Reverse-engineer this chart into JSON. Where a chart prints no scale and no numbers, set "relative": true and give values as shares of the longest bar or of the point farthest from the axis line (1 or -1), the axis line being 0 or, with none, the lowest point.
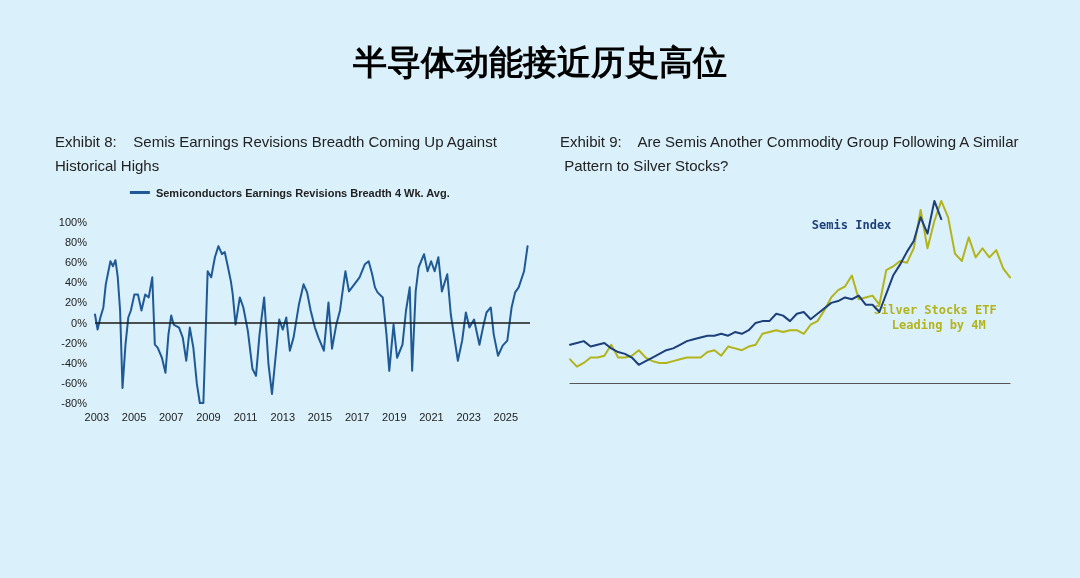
{
  "chart_data": [
    {
      "type": "line",
      "title": "半导体动能接近历史高位",
      "subtitle": "Exhibit 8:    Semis Earnings Revisions Breadth Coming Up Against Historical Highs",
      "legend": "top",
      "xlim": [
        2002.9,
        2026.3
      ],
      "xticks": [
        2003,
        2005,
        2007,
        2009,
        2011,
        2013,
        2015,
        2017,
        2019,
        2021,
        2023,
        2025
      ],
      "ylim": [
        -80,
        100
      ],
      "yticks": [
        {
          "value": -80,
          "label": "-80%"
        },
        {
          "value": -60,
          "label": "-60%"
        },
        {
          "value": -40,
          "label": "-40%"
        },
        {
          "value": -20,
          "label": "-20%"
        },
        {
          "value": 0,
          "label": "0%"
        },
        {
          "value": 20,
          "label": "20%"
        },
        {
          "value": 40,
          "label": "40%"
        },
        {
          "value": 60,
          "label": "60%"
        },
        {
          "value": 80,
          "label": "80%"
        },
        {
          "value": 100,
          "label": "100%"
        }
      ],
      "marker": "none",
      "line_style": "solid",
      "ref_lines": [
        {
          "axis": "y",
          "value": 0,
          "color": "#1a1a1a"
        }
      ],
      "series": [
        {
          "name": "Semiconductors Earnings Revisions Breadth 4 Wk. Avg.",
          "color": "#1f5a96",
          "x": [
            2002.9,
            2003.04,
            2003.19,
            2003.35,
            2003.48,
            2003.62,
            2003.73,
            2003.87,
            2004.0,
            2004.12,
            2004.25,
            2004.38,
            2004.54,
            2004.69,
            2004.83,
            2005.02,
            2005.21,
            2005.4,
            2005.6,
            2005.79,
            2005.98,
            2006.12,
            2006.27,
            2006.5,
            2006.69,
            2006.85,
            2007.0,
            2007.13,
            2007.42,
            2007.62,
            2007.81,
            2008.0,
            2008.19,
            2008.38,
            2008.54,
            2008.73,
            2008.88,
            2008.96,
            2009.15,
            2009.35,
            2009.54,
            2009.73,
            2009.88,
            2010.02,
            2010.21,
            2010.31,
            2010.46,
            2010.69,
            2010.88,
            2011.12,
            2011.37,
            2011.56,
            2011.75,
            2012.0,
            2012.23,
            2012.42,
            2012.62,
            2012.81,
            2013.0,
            2013.19,
            2013.38,
            2013.58,
            2013.87,
            2014.12,
            2014.31,
            2014.5,
            2014.73,
            2014.92,
            2015.21,
            2015.46,
            2015.65,
            2015.88,
            2016.08,
            2016.27,
            2016.37,
            2016.56,
            2016.85,
            2017.13,
            2017.42,
            2017.62,
            2017.81,
            2017.96,
            2018.1,
            2018.38,
            2018.58,
            2018.73,
            2018.96,
            2019.15,
            2019.44,
            2019.63,
            2019.83,
            2019.96,
            2020.15,
            2020.31,
            2020.6,
            2020.79,
            2020.98,
            2021.17,
            2021.37,
            2021.56,
            2021.85,
            2022.04,
            2022.23,
            2022.42,
            2022.65,
            2022.85,
            2023.04,
            2023.29,
            2023.58,
            2023.77,
            2023.96,
            2024.19,
            2024.35,
            2024.58,
            2024.83,
            2025.08,
            2025.31,
            2025.5,
            2025.69,
            2025.98,
            2026.17
          ],
          "values": [
            8,
            -7,
            5,
            15,
            38,
            51,
            61,
            56,
            62,
            46,
            12,
            -65,
            -22,
            5,
            12,
            28,
            28,
            12,
            28,
            25,
            45,
            -22,
            -25,
            -35,
            -50,
            -12,
            7,
            -2,
            -5,
            -15,
            -38,
            -5,
            -25,
            -61,
            -80,
            -80,
            5,
            51,
            45,
            65,
            76,
            68,
            70,
            58,
            41,
            28,
            -2,
            25,
            15,
            -8,
            -46,
            -53,
            -12,
            25,
            -41,
            -71,
            -33,
            3,
            -7,
            5,
            -28,
            -15,
            18,
            38,
            30,
            12,
            -5,
            -15,
            -28,
            20,
            -26,
            -2,
            12,
            38,
            51,
            31,
            38,
            45,
            58,
            61,
            48,
            35,
            30,
            25,
            -12,
            -48,
            -2,
            -35,
            -22,
            12,
            35,
            -48,
            31,
            55,
            68,
            51,
            61,
            51,
            65,
            31,
            48,
            8,
            -15,
            -38,
            -18,
            10,
            -5,
            3,
            -22,
            -5,
            10,
            15,
            -12,
            -33,
            -23,
            -18,
            15,
            30,
            35,
            51,
            76
          ]
        }
      ]
    },
    {
      "type": "line",
      "title": "Exhibit 9:    Are Semis Another Commodity Group Following A Similar Pattern to Silver Stocks?",
      "relative": true,
      "legend": false,
      "marker": "none",
      "line_style": "solid",
      "categories": [
        null,
        null,
        null,
        null,
        null,
        null,
        null,
        null,
        null,
        null,
        null,
        null,
        null,
        null,
        null,
        null,
        null,
        null,
        null,
        null,
        null,
        null,
        null,
        null,
        null,
        null,
        null,
        null,
        null,
        null,
        null,
        null,
        null,
        null,
        null,
        null,
        null,
        null,
        null,
        null,
        null,
        null,
        null,
        null,
        null,
        null,
        null,
        null,
        null,
        null,
        null,
        null,
        null,
        null,
        null,
        null,
        null,
        null,
        null,
        null,
        null,
        null,
        null,
        null,
        null
      ],
      "series": [
        {
          "name": "Silver Stocks ETF Leading by 4M",
          "color": "#b3b41c",
          "values": [
            0.13,
            0.09,
            0.11,
            0.14,
            0.14,
            0.15,
            0.21,
            0.14,
            0.14,
            0.15,
            0.18,
            0.14,
            0.12,
            0.11,
            0.11,
            0.12,
            0.13,
            0.14,
            0.14,
            0.14,
            0.17,
            0.18,
            0.15,
            0.2,
            0.19,
            0.18,
            0.2,
            0.21,
            0.27,
            0.28,
            0.29,
            0.28,
            0.29,
            0.29,
            0.27,
            0.32,
            0.34,
            0.4,
            0.47,
            0.51,
            0.53,
            0.59,
            0.46,
            0.47,
            0.48,
            0.43,
            0.62,
            0.64,
            0.67,
            0.66,
            0.74,
            0.95,
            0.74,
            0.89,
            1,
            0.91,
            0.71,
            0.67,
            0.8,
            0.69,
            0.74,
            0.69,
            0.73,
            0.63,
            0.58
          ]
        },
        {
          "name": "Semis Index",
          "color": "#1d3f7a",
          "values": [
            0.21,
            0.22,
            0.23,
            0.2,
            0.21,
            0.22,
            0.19,
            0.17,
            0.16,
            0.14,
            0.1,
            0.12,
            0.14,
            0.16,
            0.18,
            0.19,
            0.21,
            0.23,
            0.24,
            0.25,
            0.26,
            0.26,
            0.27,
            0.26,
            0.28,
            0.27,
            0.29,
            0.33,
            0.34,
            0.34,
            0.38,
            0.37,
            0.34,
            0.38,
            0.39,
            0.35,
            0.38,
            0.41,
            0.44,
            0.45,
            0.47,
            0.46,
            0.48,
            0.43,
            0.43,
            0.39,
            0.49,
            0.59,
            0.65,
            0.72,
            0.78,
            0.91,
            0.82,
            1,
            0.9,
            null,
            null,
            null,
            null,
            null,
            null,
            null,
            null,
            null,
            null
          ]
        }
      ]
    }
  ]
}
